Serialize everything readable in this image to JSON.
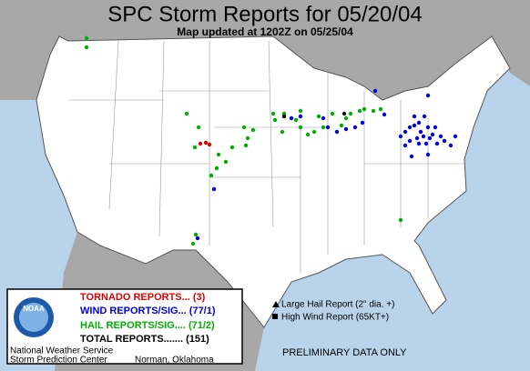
{
  "header": {
    "title": "SPC Storm Reports for 05/20/04",
    "subtitle": "Map updated at 1202Z on 05/25/04"
  },
  "legend": {
    "logo": "NOAA",
    "tornado": "TORNADO REPORTS... (3)",
    "wind": "WIND REPORTS/SIG... (77/1)",
    "hail": "HAIL REPORTS/SIG.... (71/2)",
    "total": "TOTAL REPORTS....... (151)"
  },
  "footer": {
    "agency": "National Weather Service",
    "center": "Storm Prediction Center",
    "location": "Norman, Oklahoma"
  },
  "key": {
    "large_hail": "Large Hail Report (2\" dia. +)",
    "high_wind": "High Wind Report (65KT+)"
  },
  "note": "PRELIMINARY DATA ONLY"
}
